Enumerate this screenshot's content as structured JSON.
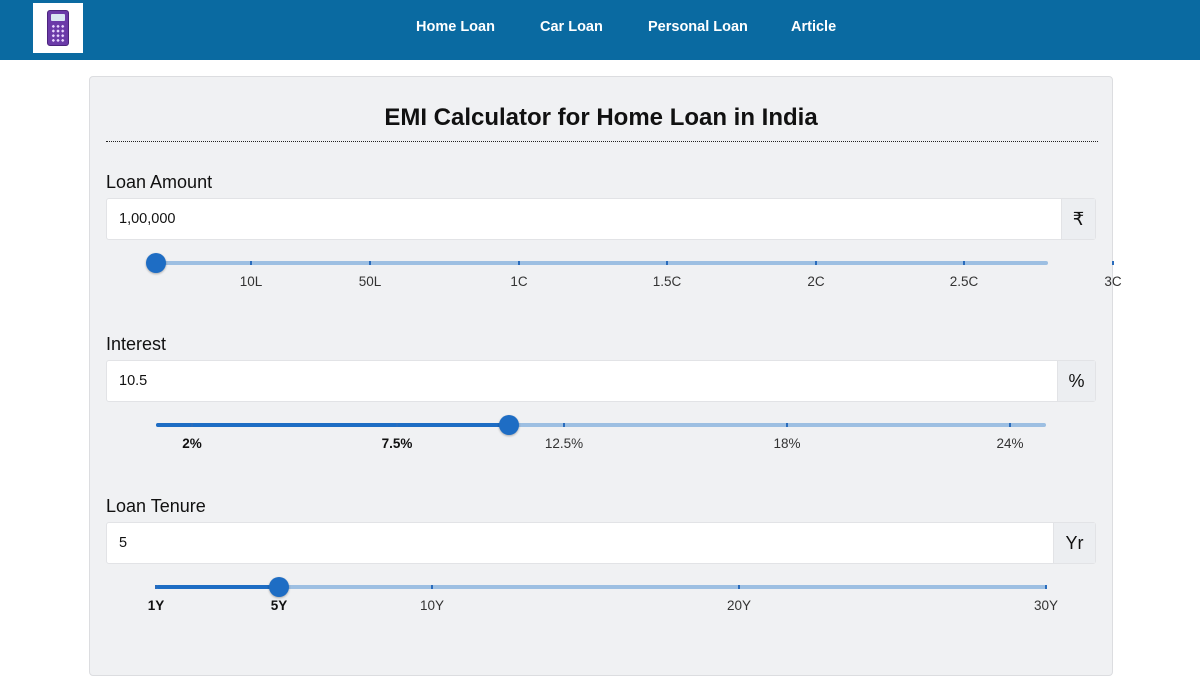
{
  "nav": {
    "logo_icon": "calculator-icon",
    "links": [
      "Home Loan",
      "Car Loan",
      "Personal Loan",
      "Article"
    ]
  },
  "calculator": {
    "title": "EMI Calculator for Home Loan in India",
    "loan_amount": {
      "label": "Loan Amount",
      "value": "1,00,000",
      "unit": "₹",
      "ticks": [
        "10L",
        "50L",
        "1C",
        "1.5C",
        "2C",
        "2.5C",
        "3C"
      ],
      "slider_fraction": 0.0
    },
    "interest": {
      "label": "Interest",
      "value": "10.5",
      "unit": "%",
      "ticks": [
        "2%",
        "7.5%",
        "12.5%",
        "18%",
        "24%"
      ],
      "slider_fraction": 0.397
    },
    "tenure": {
      "label": "Loan Tenure",
      "value": "5",
      "unit": "Yr",
      "ticks": [
        "1Y",
        "5Y",
        "10Y",
        "20Y",
        "30Y"
      ],
      "slider_fraction": 0.138
    }
  },
  "colors": {
    "navbar": "#0a6aa1",
    "slider_fill": "#1e6dc4",
    "slider_track": "#9dbfe2",
    "card_bg": "#f0f1f3"
  }
}
